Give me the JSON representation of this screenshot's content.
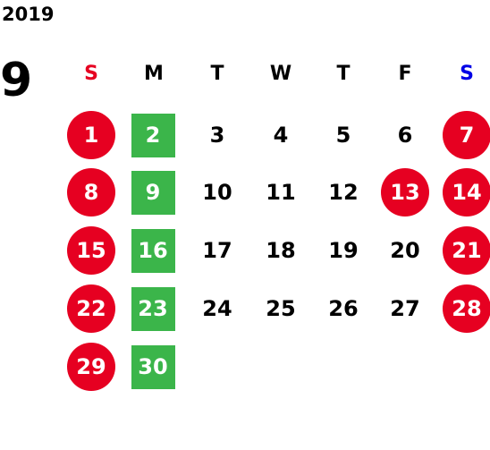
{
  "year": "2019",
  "month": "9",
  "weekdays": [
    {
      "label": "S",
      "color": "#e60021"
    },
    {
      "label": "M",
      "color": "#000000"
    },
    {
      "label": "T",
      "color": "#000000"
    },
    {
      "label": "W",
      "color": "#000000"
    },
    {
      "label": "T",
      "color": "#000000"
    },
    {
      "label": "F",
      "color": "#000000"
    },
    {
      "label": "S",
      "color": "#0000e6"
    }
  ],
  "weeks": [
    [
      {
        "day": "1",
        "shape": "circle",
        "color": "#e60021"
      },
      {
        "day": "2",
        "shape": "square",
        "color": "#3bb54a"
      },
      {
        "day": "3"
      },
      {
        "day": "4"
      },
      {
        "day": "5"
      },
      {
        "day": "6"
      },
      {
        "day": "7",
        "shape": "circle",
        "color": "#e60021"
      }
    ],
    [
      {
        "day": "8",
        "shape": "circle",
        "color": "#e60021"
      },
      {
        "day": "9",
        "shape": "square",
        "color": "#3bb54a"
      },
      {
        "day": "10"
      },
      {
        "day": "11"
      },
      {
        "day": "12"
      },
      {
        "day": "13",
        "shape": "circle",
        "color": "#e60021"
      },
      {
        "day": "14",
        "shape": "circle",
        "color": "#e60021"
      }
    ],
    [
      {
        "day": "15",
        "shape": "circle",
        "color": "#e60021"
      },
      {
        "day": "16",
        "shape": "square",
        "color": "#3bb54a"
      },
      {
        "day": "17"
      },
      {
        "day": "18"
      },
      {
        "day": "19"
      },
      {
        "day": "20"
      },
      {
        "day": "21",
        "shape": "circle",
        "color": "#e60021"
      }
    ],
    [
      {
        "day": "22",
        "shape": "circle",
        "color": "#e60021"
      },
      {
        "day": "23",
        "shape": "square",
        "color": "#3bb54a"
      },
      {
        "day": "24"
      },
      {
        "day": "25"
      },
      {
        "day": "26"
      },
      {
        "day": "27"
      },
      {
        "day": "28",
        "shape": "circle",
        "color": "#e60021"
      }
    ],
    [
      {
        "day": "29",
        "shape": "circle",
        "color": "#e60021"
      },
      {
        "day": "30",
        "shape": "square",
        "color": "#3bb54a"
      }
    ]
  ]
}
